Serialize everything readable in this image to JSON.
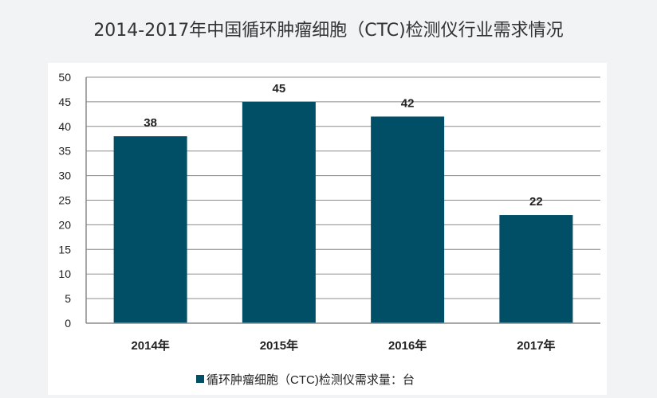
{
  "page": {
    "title": "2014-2017年中国循环肿瘤细胞（CTC)检测仪行业需求情况"
  },
  "colors": {
    "bar": "#004f66",
    "grid": "#8c8c8c",
    "axis": "#8c8c8c",
    "panel_background": "#ffffff",
    "page_background": "#f2f3f5"
  },
  "chart_data": {
    "type": "bar",
    "title": "2014-2017年中国循环肿瘤细胞（CTC)检测仪行业需求情况",
    "categories": [
      "2014年",
      "2015年",
      "2016年",
      "2017年"
    ],
    "series": [
      {
        "name": "循环肿瘤细胞（CTC)检测仪需求量：台",
        "values": [
          38,
          45,
          42,
          22
        ]
      }
    ],
    "ylim": [
      0,
      50
    ],
    "yticks": [
      0,
      5,
      10,
      15,
      20,
      25,
      30,
      35,
      40,
      45,
      50
    ],
    "xlabel": "",
    "ylabel": "",
    "grid": true,
    "data_labels": true,
    "legend_position": "bottom"
  }
}
